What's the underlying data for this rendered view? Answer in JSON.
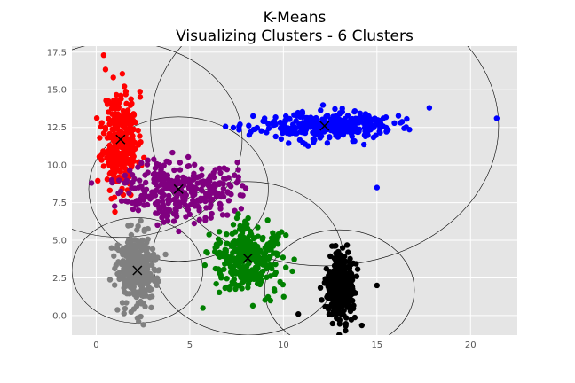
{
  "chart_data": {
    "type": "scatter",
    "title": "K-Means",
    "subtitle": "Visualizing Clusters - 6 Clusters",
    "xlabel": "",
    "ylabel": "",
    "xlim": [
      -1.3,
      22.5
    ],
    "ylim": [
      -1.3,
      17.9
    ],
    "xticks": [
      0,
      5,
      10,
      15,
      20
    ],
    "yticks": [
      0.0,
      2.5,
      5.0,
      7.5,
      10.0,
      12.5,
      15.0,
      17.5
    ],
    "xtick_labels": [
      "0",
      "5",
      "10",
      "15",
      "20"
    ],
    "ytick_labels": [
      "0.0",
      "2.5",
      "5.0",
      "7.5",
      "10.0",
      "12.5",
      "15.0",
      "17.5"
    ],
    "grid": true,
    "background": "#e5e5e5",
    "clusters": [
      {
        "color": "#ff0000",
        "centroid": [
          1.3,
          11.7
        ],
        "spread": [
          0.45,
          1.6
        ],
        "count": 330,
        "seed": 11,
        "circle_radius": 6.5
      },
      {
        "color": "#0000ff",
        "centroid": [
          12.2,
          12.6
        ],
        "spread": [
          1.8,
          0.45
        ],
        "count": 330,
        "seed": 23,
        "circle_radius": 9.3
      },
      {
        "color": "#800080",
        "centroid": [
          4.4,
          8.4
        ],
        "spread": [
          1.5,
          1.0
        ],
        "count": 330,
        "seed": 37,
        "circle_radius": 4.8
      },
      {
        "color": "#008000",
        "centroid": [
          8.1,
          3.8
        ],
        "spread": [
          0.95,
          1.1
        ],
        "count": 330,
        "seed": 41,
        "circle_radius": 5.1
      },
      {
        "color": "#808080",
        "centroid": [
          2.2,
          3.0
        ],
        "spread": [
          0.55,
          1.2
        ],
        "count": 330,
        "seed": 53,
        "circle_radius": 3.5
      },
      {
        "color": "#000000",
        "centroid": [
          13.0,
          1.7
        ],
        "spread": [
          0.35,
          1.1
        ],
        "count": 330,
        "seed": 67,
        "circle_radius": 4.0
      }
    ],
    "outliers": [
      {
        "x": 21.4,
        "y": 13.1,
        "color": "#0000ff"
      },
      {
        "x": 15.0,
        "y": 8.5,
        "color": "#0000ff"
      },
      {
        "x": 17.8,
        "y": 13.8,
        "color": "#0000ff"
      },
      {
        "x": 0.4,
        "y": 17.3,
        "color": "#ff0000"
      },
      {
        "x": 0.3,
        "y": 12.8,
        "color": "#ff0000"
      },
      {
        "x": 5.7,
        "y": 0.5,
        "color": "#008000"
      },
      {
        "x": 10.8,
        "y": 0.1,
        "color": "#000000"
      },
      {
        "x": 15.0,
        "y": 2.0,
        "color": "#000000"
      }
    ],
    "centroid_marker": "x"
  }
}
